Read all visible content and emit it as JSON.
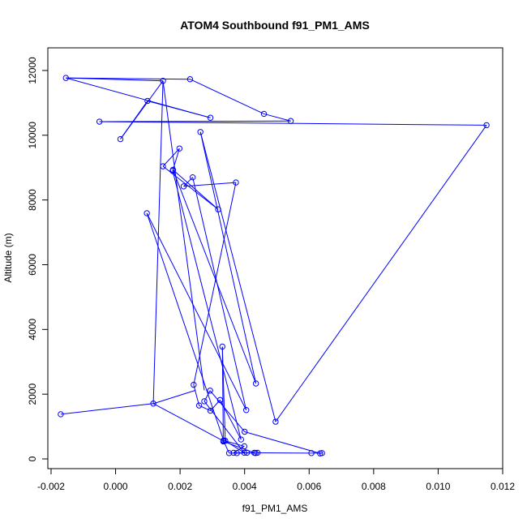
{
  "chart_data": {
    "type": "line",
    "title": "ATOM4 Southbound f91_PM1_AMS",
    "xlabel": "f91_PM1_AMS",
    "ylabel": "Altitude (m)",
    "xlim": [
      -0.0021,
      0.012
    ],
    "ylim": [
      -300,
      12700
    ],
    "xticks": [
      -0.002,
      0,
      0.002,
      0.004,
      0.006,
      0.008,
      0.01,
      0.012
    ],
    "xtick_labels": [
      "-0.002",
      "0.000",
      "0.002",
      "0.004",
      "0.006",
      "0.008",
      "0.010",
      "0.012"
    ],
    "yticks": [
      0,
      2000,
      4000,
      6000,
      8000,
      10000,
      12000
    ],
    "ytick_labels": [
      "0",
      "2000",
      "4000",
      "6000",
      "8000",
      "10000",
      "12000"
    ],
    "grid": false,
    "color": "#0000ff",
    "series": [
      {
        "marker": "open-circle",
        "points": [
          [
            0.00015,
            9880
          ],
          [
            0.00099,
            11060
          ],
          [
            0.00294,
            10540
          ],
          [
            -0.00154,
            11770
          ],
          [
            0.00231,
            11730
          ],
          [
            0.0046,
            10660
          ],
          [
            0.00543,
            10440
          ],
          [
            -0.0005,
            10420
          ],
          [
            0.0115,
            10310
          ],
          [
            0.00496,
            1150
          ],
          [
            0.00263,
            10100
          ],
          [
            0.00435,
            2330
          ],
          [
            0.00178,
            8930
          ],
          [
            0.00318,
            7710
          ],
          [
            0.00147,
            9040
          ],
          [
            0.00198,
            9590
          ],
          [
            0.00177,
            8900
          ],
          [
            0.00389,
            600
          ],
          [
            0.00324,
            1820
          ],
          [
            0.00294,
            1490
          ],
          [
            0.00259,
            1650
          ],
          [
            0.00242,
            2290
          ],
          [
            0.00373,
            8540
          ],
          [
            0.00211,
            8420
          ],
          [
            0.00239,
            8700
          ],
          [
            0.00405,
            1510
          ],
          [
            0.00097,
            7590
          ],
          [
            0.00335,
            570
          ],
          [
            0.00399,
            390
          ],
          [
            0.00366,
            190
          ],
          [
            0.00407,
            190
          ],
          [
            0.00434,
            180
          ],
          [
            0.0044,
            190
          ],
          [
            0.00607,
            180
          ],
          [
            0.0064,
            180
          ],
          [
            0.00634,
            170
          ],
          [
            0.004,
            840
          ],
          [
            0.00293,
            2110
          ],
          [
            0.00275,
            1780
          ],
          [
            0.00399,
            190
          ],
          [
            0.0034,
            560
          ],
          [
            0.00331,
            3470
          ],
          [
            0.00334,
            540
          ],
          [
            0.0043,
            190
          ],
          [
            0.00376,
            180
          ],
          [
            0.00352,
            180
          ],
          [
            0.00335,
            550
          ],
          [
            0.00117,
            1710
          ],
          [
            -0.0017,
            1380
          ]
        ],
        "connector_only": [
          [
            0.00147,
            11680
          ],
          [
            0.00275,
            2120
          ],
          [
            0.00248,
            2120
          ],
          [
            0.00115,
            1700
          ]
        ]
      }
    ]
  }
}
